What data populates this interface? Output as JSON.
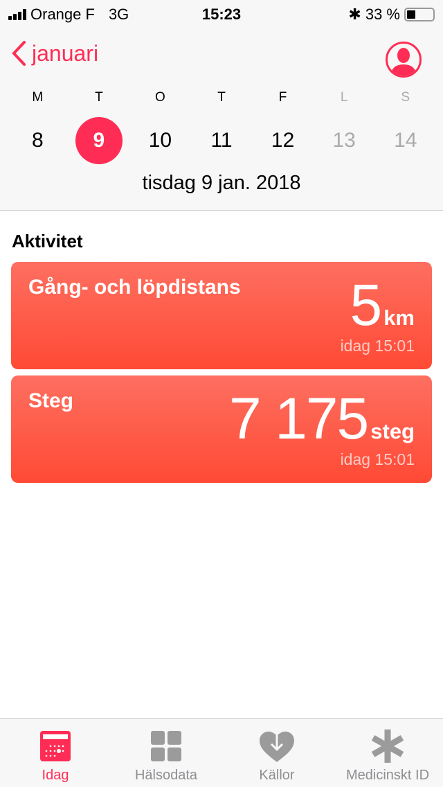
{
  "status": {
    "carrier": "Orange F",
    "network": "3G",
    "time": "15:23",
    "battery": "33 %",
    "battery_level": 0.33
  },
  "nav": {
    "back_label": "januari"
  },
  "week": {
    "days": [
      {
        "letter": "M",
        "num": "8",
        "state": "normal"
      },
      {
        "letter": "T",
        "num": "9",
        "state": "selected"
      },
      {
        "letter": "O",
        "num": "10",
        "state": "normal"
      },
      {
        "letter": "T",
        "num": "11",
        "state": "normal"
      },
      {
        "letter": "F",
        "num": "12",
        "state": "normal"
      },
      {
        "letter": "L",
        "num": "13",
        "state": "future"
      },
      {
        "letter": "S",
        "num": "14",
        "state": "future"
      }
    ]
  },
  "selected_date": "tisdag 9 jan. 2018",
  "section_title": "Aktivitet",
  "cards": [
    {
      "title": "Gång- och löpdistans",
      "value": "5",
      "unit": "km",
      "time": "idag 15:01"
    },
    {
      "title": "Steg",
      "value": "7 175",
      "unit": "steg",
      "time": "idag 15:01"
    }
  ],
  "tabs": [
    {
      "label": "Idag",
      "icon": "calendar-icon",
      "active": true
    },
    {
      "label": "Hälsodata",
      "icon": "grid-icon"
    },
    {
      "label": "Källor",
      "icon": "heart-download-icon"
    },
    {
      "label": "Medicinskt ID",
      "icon": "asterisk-icon"
    }
  ],
  "colors": {
    "accent": "#ff2d55",
    "card_top": "#fe6f60",
    "card_bottom": "#ff4a35",
    "inactive": "#8e8e93"
  }
}
